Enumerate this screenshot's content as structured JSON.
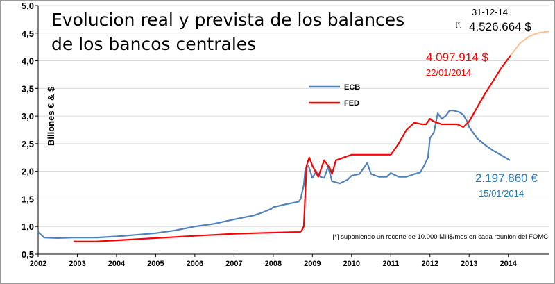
{
  "chart_data": {
    "type": "line",
    "title_line1": "Evolucion real y prevista de los balances",
    "title_line2": "de los bancos centrales",
    "ylabel": "Billones € & $",
    "ylim": [
      0.5,
      5.0
    ],
    "yticks": [
      "0,5",
      "1,0",
      "1,5",
      "2,0",
      "2,5",
      "3,0",
      "3,5",
      "4,0",
      "4,5",
      "5,0"
    ],
    "xlim": [
      2002.0,
      2015.05
    ],
    "xticks": [
      "2002",
      "2003",
      "2004",
      "2005",
      "2006",
      "2007",
      "2008",
      "2009",
      "2010",
      "2011",
      "2012",
      "2013",
      "2014"
    ],
    "grid": "horizontal",
    "legend": [
      "ECB",
      "FED"
    ],
    "colors": {
      "ECB": "#4f81bd",
      "FED": "#ff0000",
      "projection": "#fac090"
    },
    "series": [
      {
        "name": "ECB",
        "x": [
          2002.0,
          2002.15,
          2002.5,
          2002.9,
          2003.5,
          2004.0,
          2004.5,
          2005.0,
          2005.5,
          2006.0,
          2006.5,
          2007.0,
          2007.5,
          2007.75,
          2007.95,
          2008.0,
          2008.3,
          2008.65,
          2008.7,
          2008.78,
          2008.82,
          2008.9,
          2009.0,
          2009.1,
          2009.2,
          2009.3,
          2009.4,
          2009.5,
          2009.7,
          2009.9,
          2010.0,
          2010.2,
          2010.35,
          2010.4,
          2010.5,
          2010.7,
          2010.9,
          2011.0,
          2011.2,
          2011.4,
          2011.6,
          2011.75,
          2011.85,
          2011.95,
          2012.0,
          2012.1,
          2012.2,
          2012.3,
          2012.4,
          2012.5,
          2012.6,
          2012.75,
          2012.85,
          2012.95,
          2013.0,
          2013.2,
          2013.4,
          2013.6,
          2013.8,
          2014.04
        ],
        "y": [
          0.9,
          0.8,
          0.79,
          0.8,
          0.8,
          0.82,
          0.85,
          0.88,
          0.93,
          1.0,
          1.05,
          1.13,
          1.2,
          1.26,
          1.32,
          1.35,
          1.4,
          1.45,
          1.5,
          1.75,
          2.05,
          2.1,
          1.88,
          2.0,
          1.9,
          1.88,
          2.08,
          1.82,
          1.78,
          1.85,
          1.92,
          1.95,
          2.1,
          2.15,
          1.95,
          1.9,
          1.9,
          1.97,
          1.9,
          1.9,
          1.95,
          1.98,
          2.1,
          2.25,
          2.6,
          2.7,
          3.05,
          2.95,
          3.0,
          3.1,
          3.1,
          3.07,
          3.02,
          2.9,
          2.8,
          2.6,
          2.48,
          2.38,
          2.3,
          2.2
        ]
      },
      {
        "name": "FED",
        "x": [
          2002.9,
          2003.0,
          2003.5,
          2004.0,
          2004.5,
          2005.0,
          2005.5,
          2006.0,
          2006.5,
          2007.0,
          2007.5,
          2008.0,
          2008.5,
          2008.68,
          2008.72,
          2008.78,
          2008.85,
          2008.92,
          2009.0,
          2009.15,
          2009.3,
          2009.45,
          2009.5,
          2009.6,
          2009.8,
          2010.0,
          2010.5,
          2010.9,
          2011.0,
          2011.2,
          2011.4,
          2011.6,
          2011.8,
          2011.9,
          2012.0,
          2012.1,
          2012.3,
          2012.5,
          2012.7,
          2012.85,
          2013.0,
          2013.2,
          2013.4,
          2013.6,
          2013.8,
          2014.06
        ],
        "y": [
          0.73,
          0.73,
          0.73,
          0.75,
          0.77,
          0.79,
          0.81,
          0.83,
          0.85,
          0.87,
          0.88,
          0.89,
          0.9,
          0.9,
          0.92,
          1.0,
          2.1,
          2.25,
          2.1,
          1.9,
          2.2,
          2.05,
          1.95,
          2.2,
          2.25,
          2.3,
          2.3,
          2.3,
          2.3,
          2.5,
          2.75,
          2.88,
          2.85,
          2.85,
          2.95,
          2.9,
          2.85,
          2.85,
          2.85,
          2.8,
          2.9,
          3.15,
          3.4,
          3.62,
          3.85,
          4.1
        ]
      },
      {
        "name": "projection",
        "x": [
          2014.06,
          2014.3,
          2014.55,
          2014.8,
          2015.05
        ],
        "y": [
          4.1,
          4.32,
          4.45,
          4.51,
          4.53
        ]
      }
    ],
    "annotations": {
      "fed_value": "4.097.914 $",
      "fed_date": "22/01/2014",
      "ecb_value": "2.197.860 €",
      "ecb_date": "15/01/2014",
      "proj_date": "31-12-14",
      "proj_mark": "[*]",
      "proj_value": "4.526.664 $",
      "footnote": "[*] suponiendo un recorte de 10.000 Mill$/mes en cada reunión del FOMC"
    }
  }
}
